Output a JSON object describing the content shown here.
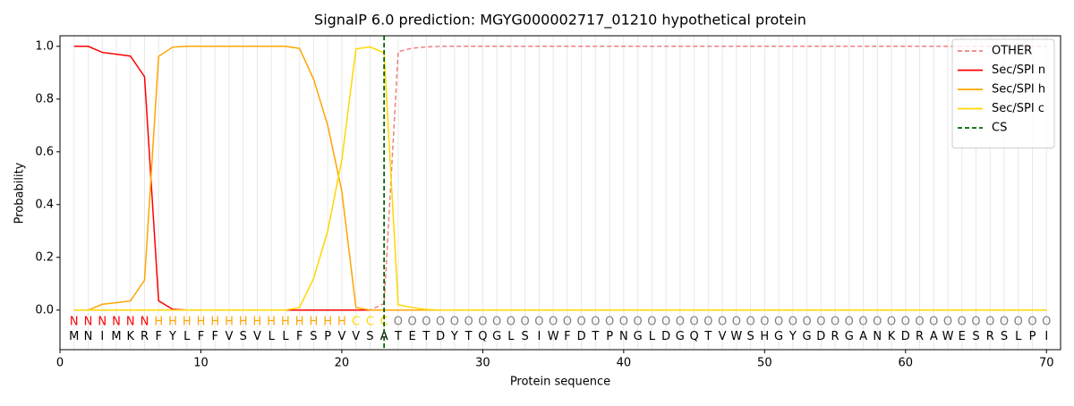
{
  "chart_data": {
    "type": "line",
    "title": "SignalP 6.0 prediction: MGYG000002717_01210 hypothetical protein",
    "xlabel": "Protein sequence",
    "ylabel": "Probability",
    "x": [
      1,
      2,
      3,
      4,
      5,
      6,
      7,
      8,
      9,
      10,
      11,
      12,
      13,
      14,
      15,
      16,
      17,
      18,
      19,
      20,
      21,
      22,
      23,
      24,
      25,
      26,
      27,
      28,
      29,
      30,
      31,
      32,
      33,
      34,
      35,
      36,
      37,
      38,
      39,
      40,
      41,
      42,
      43,
      44,
      45,
      46,
      47,
      48,
      49,
      50,
      51,
      52,
      53,
      54,
      55,
      56,
      57,
      58,
      59,
      60,
      61,
      62,
      63,
      64,
      65,
      66,
      67,
      68,
      69,
      70
    ],
    "xlim": [
      0,
      71
    ],
    "xticks": [
      0,
      10,
      20,
      30,
      40,
      50,
      60,
      70
    ],
    "ylim": [
      -0.15,
      1.04
    ],
    "yticks": [
      {
        "value": 0,
        "label": "0.0"
      },
      0.2,
      0.4,
      0.6,
      0.8,
      {
        "value": 1,
        "label": "1.0"
      }
    ],
    "xgrid": true,
    "legend": "upper right",
    "series": [
      {
        "name": "OTHER",
        "color": "#f08080",
        "dashed": true,
        "values": [
          0,
          0,
          0,
          0,
          0,
          0,
          0,
          0,
          0,
          0,
          0,
          0,
          0,
          0,
          0,
          0,
          0,
          0,
          0,
          0,
          0,
          0,
          0.025,
          0.98,
          0.993,
          0.998,
          1,
          1,
          1,
          1,
          1,
          1,
          1,
          1,
          1,
          1,
          1,
          1,
          1,
          1,
          1,
          1,
          1,
          1,
          1,
          1,
          1,
          1,
          1,
          1,
          1,
          1,
          1,
          1,
          1,
          1,
          1,
          1,
          1,
          1,
          1,
          1,
          1,
          1,
          1,
          1,
          1,
          1,
          1,
          1
        ]
      },
      {
        "name": "Sec/SPI n",
        "color": "#ff0000",
        "values": [
          1.0,
          1.0,
          0.977,
          0.97,
          0.963,
          0.885,
          0.035,
          0.003,
          0,
          0,
          0,
          0,
          0,
          0,
          0,
          0,
          0,
          0,
          0,
          0,
          0,
          0,
          0,
          0,
          0,
          0,
          0,
          0,
          0,
          0,
          0,
          0,
          0,
          0,
          0,
          0,
          0,
          0,
          0,
          0,
          0,
          0,
          0,
          0,
          0,
          0,
          0,
          0,
          0,
          0,
          0,
          0,
          0,
          0,
          0,
          0,
          0,
          0,
          0,
          0,
          0,
          0,
          0,
          0,
          0,
          0,
          0,
          0,
          0,
          0
        ]
      },
      {
        "name": "Sec/SPI h",
        "color": "#ffa500",
        "values": [
          0,
          0,
          0.022,
          0.028,
          0.035,
          0.113,
          0.962,
          0.997,
          1,
          1,
          1,
          1,
          1,
          1,
          1,
          1,
          0.992,
          0.875,
          0.7,
          0.45,
          0.01,
          0,
          0,
          0,
          0,
          0,
          0,
          0,
          0,
          0,
          0,
          0,
          0,
          0,
          0,
          0,
          0,
          0,
          0,
          0,
          0,
          0,
          0,
          0,
          0,
          0,
          0,
          0,
          0,
          0,
          0,
          0,
          0,
          0,
          0,
          0,
          0,
          0,
          0,
          0,
          0,
          0,
          0,
          0,
          0,
          0,
          0,
          0,
          0,
          0
        ]
      },
      {
        "name": "Sec/SPI c",
        "color": "#ffd700",
        "values": [
          0,
          0,
          0,
          0,
          0,
          0,
          0,
          0,
          0,
          0,
          0,
          0,
          0,
          0,
          0,
          0,
          0.01,
          0.12,
          0.3,
          0.57,
          0.99,
          0.998,
          0.975,
          0.02,
          0.01,
          0.002,
          0,
          0,
          0,
          0,
          0,
          0,
          0,
          0,
          0,
          0,
          0,
          0,
          0,
          0,
          0,
          0,
          0,
          0,
          0,
          0,
          0,
          0,
          0,
          0,
          0,
          0,
          0,
          0,
          0,
          0,
          0,
          0,
          0,
          0,
          0,
          0,
          0,
          0,
          0,
          0,
          0,
          0,
          0,
          0
        ]
      }
    ],
    "cs_line": {
      "name": "CS",
      "color": "#006400",
      "x": 23
    },
    "labels": [
      "N",
      "N",
      "N",
      "N",
      "N",
      "N",
      "H",
      "H",
      "H",
      "H",
      "H",
      "H",
      "H",
      "H",
      "H",
      "H",
      "H",
      "H",
      "H",
      "H",
      "C",
      "C",
      "C",
      "O",
      "O",
      "O",
      "O",
      "O",
      "O",
      "O",
      "O",
      "O",
      "O",
      "O",
      "O",
      "O",
      "O",
      "O",
      "O",
      "O",
      "O",
      "O",
      "O",
      "O",
      "O",
      "O",
      "O",
      "O",
      "O",
      "O",
      "O",
      "O",
      "O",
      "O",
      "O",
      "O",
      "O",
      "O",
      "O",
      "O",
      "O",
      "O",
      "O",
      "O",
      "O",
      "O",
      "O",
      "O",
      "O",
      "O"
    ],
    "label_colors": {
      "N": "#ff0000",
      "H": "#ffa500",
      "C": "#ffd700",
      "O": "#808080"
    },
    "sequence": [
      "M",
      "N",
      "I",
      "M",
      "K",
      "R",
      "F",
      "Y",
      "L",
      "F",
      "F",
      "V",
      "S",
      "V",
      "L",
      "L",
      "F",
      "S",
      "P",
      "V",
      "V",
      "S",
      "A",
      "T",
      "E",
      "T",
      "D",
      "Y",
      "T",
      "Q",
      "G",
      "L",
      "S",
      "I",
      "W",
      "F",
      "D",
      "T",
      "P",
      "N",
      "G",
      "L",
      "D",
      "G",
      "Q",
      "T",
      "V",
      "W",
      "S",
      "H",
      "G",
      "Y",
      "G",
      "D",
      "R",
      "G",
      "A",
      "N",
      "K",
      "D",
      "R",
      "A",
      "W",
      "E",
      "S",
      "R",
      "S",
      "L",
      "P",
      "I"
    ]
  }
}
